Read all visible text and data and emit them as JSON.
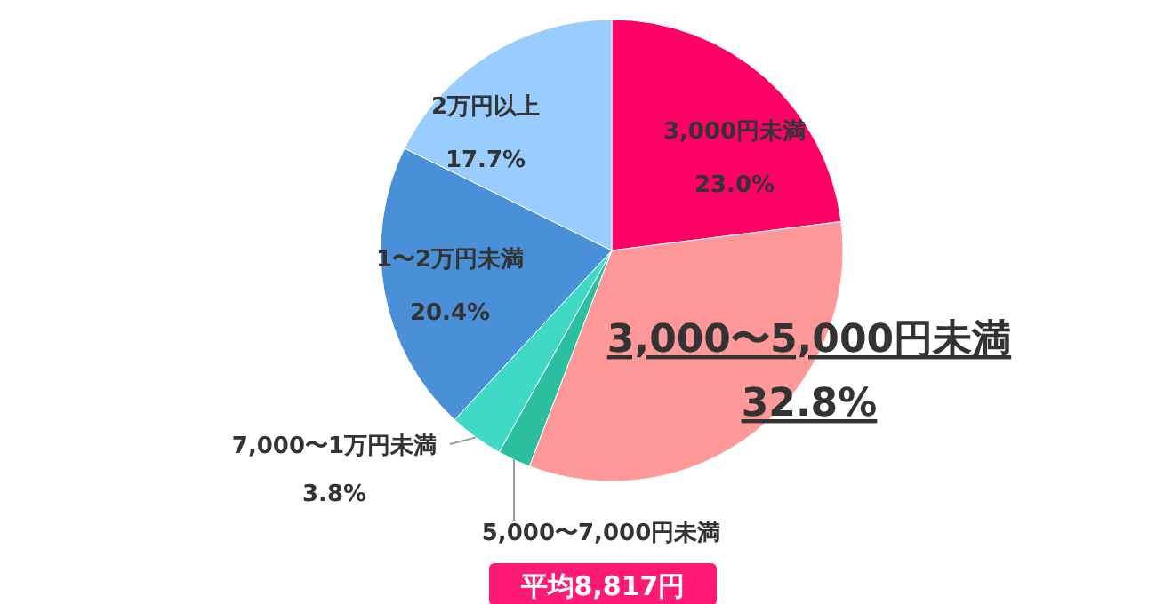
{
  "chart_data": {
    "type": "pie",
    "categories": [
      "3,000円未満",
      "3,000〜5,000円未満",
      "5,000〜7,000円未満",
      "7,000〜1万円未満",
      "1〜2万円未満",
      "2万円以上"
    ],
    "values": [
      23.0,
      32.8,
      2.3,
      3.8,
      20.4,
      17.7
    ],
    "colors": [
      "#ff0066",
      "#ff9999",
      "#2bbf9f",
      "#40d9c6",
      "#4a90d9",
      "#99ccff"
    ],
    "value_labels": [
      "23.0%",
      "32.8%",
      null,
      "3.8%",
      "20.4%",
      "17.7%"
    ],
    "annotations": [
      "平均8,817円"
    ]
  }
}
